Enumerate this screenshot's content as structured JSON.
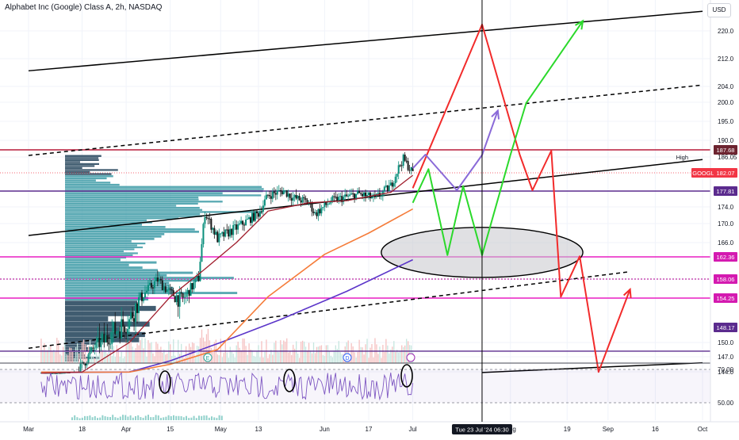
{
  "header": {
    "title": "Alphabet Inc (Google) Class A, 2h, NASDAQ"
  },
  "currency_button": "USD",
  "chart_data": {
    "type": "line",
    "title": "Alphabet Inc (Google) Class A, 2h, NASDAQ",
    "symbol": "GOOGL",
    "y_ticks": [
      220,
      212,
      204,
      200,
      195,
      190,
      186.05,
      174,
      170,
      166,
      162.36,
      158.06,
      154.25,
      150,
      147,
      144
    ],
    "ylim": [
      141,
      226
    ],
    "x_tick_labels": [
      "Mar",
      "18",
      "Apr",
      "15",
      "May",
      "13",
      "Jun",
      "17",
      "Jul",
      "Aug",
      "19",
      "Sep",
      "16",
      "Oct"
    ],
    "x_tick_label_dates": [
      "2024-03-01",
      "2024-03-18",
      "2024-04-01",
      "2024-04-15",
      "2024-05-01",
      "2024-05-13",
      "2024-06-03",
      "2024-06-17",
      "2024-07-01",
      "2024-08-01",
      "2024-08-19",
      "2024-09-01",
      "2024-09-16",
      "2024-10-01"
    ],
    "crosshair_label": "Tue 23 Jul '24   06:30",
    "high_label": {
      "text": "High",
      "value": "186.05"
    },
    "price_badges": [
      {
        "text": "187.68",
        "color": "#6d2430"
      },
      {
        "text": "GOOGL",
        "color": "#f23645"
      },
      {
        "text": "182.07",
        "color": "#f23645"
      },
      {
        "text": "177.81",
        "color": "#5b2b8e"
      },
      {
        "text": "162.36",
        "color": "#d41ab0"
      },
      {
        "text": "158.06",
        "color": "#d41ab0"
      },
      {
        "text": "154.25",
        "color": "#d41ab0"
      },
      {
        "text": "148.17",
        "color": "#5b2b8e"
      }
    ],
    "horizontal_levels": [
      {
        "value": 187.68,
        "color": "#b71c3a",
        "style": "solid"
      },
      {
        "value": 177.81,
        "color": "#5b2b8e",
        "style": "solid"
      },
      {
        "value": 162.36,
        "color": "#e91ec4",
        "style": "solid"
      },
      {
        "value": 158.06,
        "color": "#c84fb4",
        "style": "dotted"
      },
      {
        "value": 154.25,
        "color": "#e91ec4",
        "style": "solid"
      },
      {
        "value": 148.17,
        "color": "#5b2b8e",
        "style": "solid"
      }
    ],
    "price_series": [
      [
        "2024-03-05",
        140.0
      ],
      [
        "2024-03-08",
        138.5
      ],
      [
        "2024-03-12",
        139.2
      ],
      [
        "2024-03-15",
        142.6
      ],
      [
        "2024-03-18",
        145.2
      ],
      [
        "2024-03-22",
        149.1
      ],
      [
        "2024-03-27",
        150.8
      ],
      [
        "2024-04-02",
        152.1
      ],
      [
        "2024-04-08",
        156.0
      ],
      [
        "2024-04-11",
        157.9
      ],
      [
        "2024-04-15",
        155.2
      ],
      [
        "2024-04-19",
        154.1
      ],
      [
        "2024-04-24",
        158.3
      ],
      [
        "2024-04-26",
        172.6
      ],
      [
        "2024-04-30",
        166.8
      ],
      [
        "2024-05-06",
        169.1
      ],
      [
        "2024-05-13",
        172.4
      ],
      [
        "2024-05-16",
        176.8
      ],
      [
        "2024-05-21",
        177.9
      ],
      [
        "2024-05-24",
        176.2
      ],
      [
        "2024-05-29",
        175.1
      ],
      [
        "2024-05-31",
        172.3
      ],
      [
        "2024-06-05",
        175.4
      ],
      [
        "2024-06-10",
        176.4
      ],
      [
        "2024-06-14",
        177.1
      ],
      [
        "2024-06-19",
        176.0
      ],
      [
        "2024-06-24",
        179.0
      ],
      [
        "2024-06-27",
        184.2
      ],
      [
        "2024-06-28",
        185.5
      ],
      [
        "2024-07-01",
        182.1
      ]
    ],
    "ema_fast_series": [
      [
        "2024-03-05",
        139.0
      ],
      [
        "2024-03-18",
        143.0
      ],
      [
        "2024-04-02",
        150.0
      ],
      [
        "2024-04-15",
        154.5
      ],
      [
        "2024-04-26",
        160.0
      ],
      [
        "2024-05-06",
        166.0
      ],
      [
        "2024-05-16",
        173.0
      ],
      [
        "2024-05-29",
        175.0
      ],
      [
        "2024-06-10",
        175.5
      ],
      [
        "2024-06-24",
        177.5
      ],
      [
        "2024-07-01",
        181.5
      ]
    ],
    "ema_slow_series": [
      [
        "2024-03-05",
        143.0
      ],
      [
        "2024-03-18",
        142.4
      ],
      [
        "2024-04-02",
        143.0
      ],
      [
        "2024-04-15",
        145.5
      ],
      [
        "2024-04-30",
        148.5
      ],
      [
        "2024-05-16",
        154.5
      ],
      [
        "2024-06-03",
        163.0
      ],
      [
        "2024-06-17",
        168.0
      ],
      [
        "2024-07-01",
        173.5
      ]
    ],
    "ma_long_series": [
      [
        "2024-03-05",
        142.0
      ],
      [
        "2024-03-18",
        142.2
      ],
      [
        "2024-04-02",
        143.5
      ],
      [
        "2024-04-15",
        146.2
      ],
      [
        "2024-05-01",
        150.0
      ],
      [
        "2024-05-20",
        152.2
      ],
      [
        "2024-06-10",
        155.6
      ],
      [
        "2024-07-01",
        161.8
      ]
    ],
    "trendlines": [
      {
        "color": "#000000",
        "style": "solid",
        "points": [
          [
            "2024-03-01",
            208.5
          ],
          [
            "2024-10-01",
            225.5
          ]
        ]
      },
      {
        "color": "#000000",
        "style": "dashed",
        "points": [
          [
            "2024-03-01",
            186.4
          ],
          [
            "2024-10-01",
            204.4
          ]
        ]
      },
      {
        "color": "#000000",
        "style": "solid",
        "points": [
          [
            "2024-03-01",
            167.5
          ],
          [
            "2024-10-01",
            185.4
          ]
        ]
      },
      {
        "color": "#000000",
        "style": "dashed",
        "points": [
          [
            "2024-03-01",
            148.8
          ],
          [
            "2024-09-08",
            159.5
          ]
        ]
      },
      {
        "color": "#000000",
        "style": "solid",
        "points": [
          [
            "2024-07-23",
            141.5
          ],
          [
            "2024-10-01",
            145.8
          ]
        ]
      }
    ],
    "projections": [
      {
        "color": "#f22b2b",
        "points": [
          [
            "2024-07-01",
            178.5
          ],
          [
            "2024-07-23",
            221.8
          ],
          [
            "2024-08-04",
            186.5
          ],
          [
            "2024-08-08",
            178.0
          ],
          [
            "2024-08-14",
            187.5
          ],
          [
            "2024-08-17",
            154.5
          ],
          [
            "2024-08-23",
            162.5
          ],
          [
            "2024-08-29",
            143.5
          ],
          [
            "2024-09-08",
            156.0
          ]
        ]
      },
      {
        "color": "#2bd92b",
        "points": [
          [
            "2024-07-01",
            175.0
          ],
          [
            "2024-07-06",
            183.0
          ],
          [
            "2024-07-12",
            162.8
          ],
          [
            "2024-07-17",
            179.0
          ],
          [
            "2024-07-23",
            162.8
          ],
          [
            "2024-08-01",
            186.5
          ],
          [
            "2024-08-06",
            199.8
          ],
          [
            "2024-08-24",
            222.8
          ]
        ]
      },
      {
        "color": "#8a6ad8",
        "points": [
          [
            "2024-07-01",
            183.2
          ],
          [
            "2024-07-05",
            186.6
          ],
          [
            "2024-07-15",
            178.0
          ],
          [
            "2024-07-23",
            186.5
          ],
          [
            "2024-07-28",
            197.8
          ]
        ]
      }
    ],
    "ellipse_zone": {
      "center": [
        "2024-07-23",
        163.5
      ],
      "low": 158.0,
      "high": 168.8,
      "from": "2024-06-21",
      "to": "2024-08-24"
    },
    "rsi": {
      "ticks": [
        70.0,
        50.0
      ]
    },
    "event_markers": [
      "E",
      "D"
    ],
    "grid": true,
    "legend": ""
  }
}
